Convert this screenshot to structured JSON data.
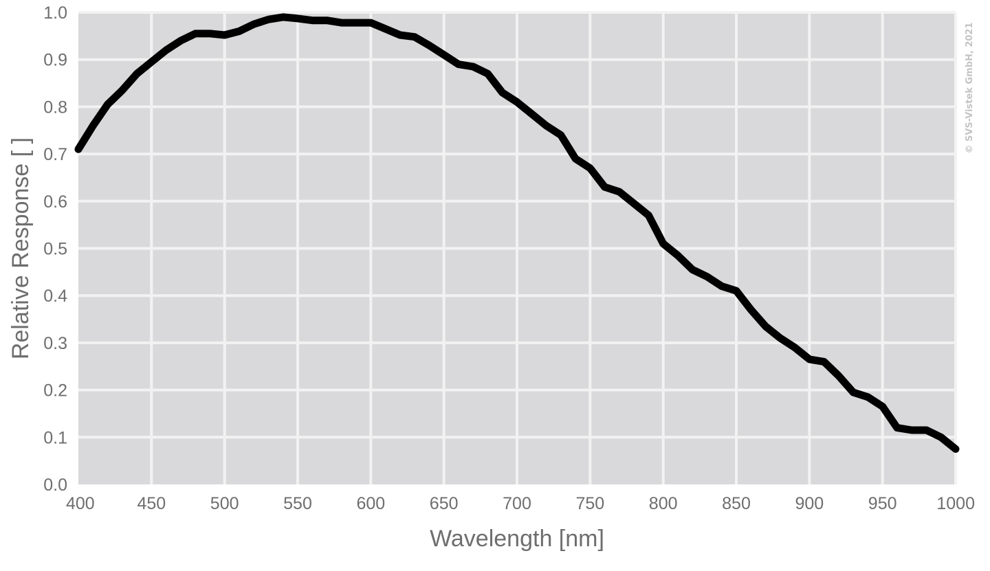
{
  "copyright": "© SVS-Vistek GmbH, 2021",
  "colors": {
    "plot_bg": "#d9d9db",
    "grid": "#f2f2f2",
    "line": "#000000",
    "text": "#6e6e6e"
  },
  "chart_data": {
    "type": "line",
    "title": "",
    "xlabel": "Wavelength [nm]",
    "ylabel": "Relative Response [ ]",
    "xlim": [
      400,
      1000
    ],
    "ylim": [
      0.0,
      1.0
    ],
    "grid": true,
    "x_ticks": [
      400,
      450,
      500,
      550,
      600,
      650,
      700,
      750,
      800,
      850,
      900,
      950,
      1000
    ],
    "x_tick_labels": [
      "400",
      "450",
      "500",
      "550",
      "600",
      "650",
      "700",
      "750",
      "800",
      "850",
      "900",
      "950",
      "1000"
    ],
    "y_ticks": [
      0.0,
      0.1,
      0.2,
      0.3,
      0.4,
      0.5,
      0.6,
      0.7,
      0.8,
      0.9,
      1.0
    ],
    "y_tick_labels": [
      "0.0",
      "0.1",
      "0.2",
      "0.3",
      "0.4",
      "0.5",
      "0.6",
      "0.7",
      "0.8",
      "0.9",
      "1.0"
    ],
    "series": [
      {
        "x": [
          400,
          410,
          420,
          430,
          440,
          450,
          460,
          470,
          480,
          490,
          500,
          510,
          520,
          530,
          540,
          550,
          560,
          570,
          580,
          590,
          600,
          610,
          620,
          630,
          640,
          650,
          660,
          670,
          680,
          690,
          700,
          710,
          720,
          730,
          740,
          750,
          760,
          770,
          780,
          790,
          800,
          810,
          820,
          830,
          840,
          850,
          860,
          870,
          880,
          890,
          900,
          910,
          920,
          930,
          940,
          950,
          960,
          970,
          980,
          990,
          1000
        ],
        "y": [
          0.71,
          0.76,
          0.805,
          0.835,
          0.87,
          0.895,
          0.92,
          0.94,
          0.955,
          0.955,
          0.952,
          0.96,
          0.975,
          0.985,
          0.99,
          0.987,
          0.983,
          0.983,
          0.978,
          0.978,
          0.978,
          0.965,
          0.952,
          0.948,
          0.93,
          0.91,
          0.89,
          0.885,
          0.87,
          0.83,
          0.81,
          0.785,
          0.76,
          0.74,
          0.69,
          0.67,
          0.63,
          0.62,
          0.595,
          0.57,
          0.51,
          0.485,
          0.455,
          0.44,
          0.42,
          0.41,
          0.37,
          0.335,
          0.31,
          0.29,
          0.265,
          0.26,
          0.23,
          0.195,
          0.185,
          0.165,
          0.12,
          0.115,
          0.115,
          0.1,
          0.075
        ]
      }
    ]
  }
}
